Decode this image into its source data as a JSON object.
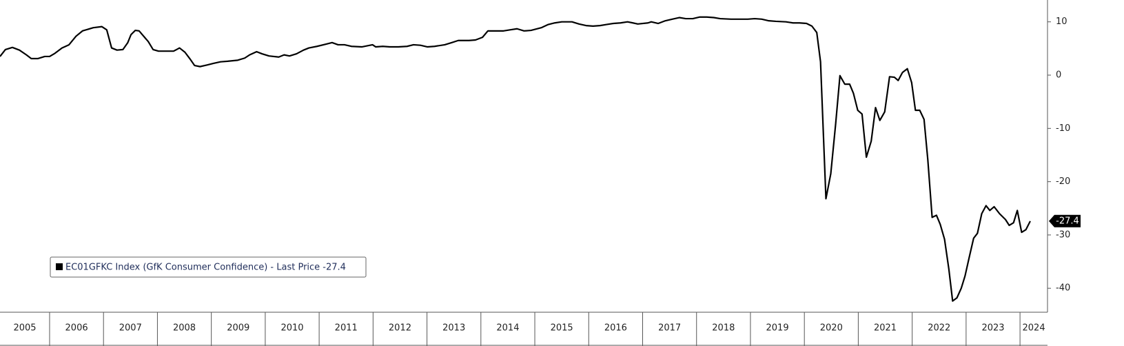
{
  "chart_data": {
    "type": "line",
    "xlim": [
      2005.08,
      2024.51
    ],
    "xticks": [
      2005,
      2006,
      2007,
      2008,
      2009,
      2010,
      2011,
      2012,
      2013,
      2014,
      2015,
      2016,
      2017,
      2018,
      2019,
      2020,
      2021,
      2022,
      2023,
      2024
    ],
    "ylim": [
      -44.5,
      14.1
    ],
    "yticks": [
      10,
      0,
      -10,
      -20,
      -30,
      -40
    ],
    "last_price": -27.4,
    "series": [
      {
        "name": "EC01GFKC Index (GfK Consumer Confidence) - Last Price -27.4",
        "color": "#000000",
        "x": [
          2005.08,
          2005.18,
          2005.31,
          2005.44,
          2005.57,
          2005.66,
          2005.78,
          2005.91,
          2006.0,
          2006.1,
          2006.23,
          2006.36,
          2006.49,
          2006.61,
          2006.81,
          2006.97,
          2007.06,
          2007.15,
          2007.25,
          2007.36,
          2007.45,
          2007.51,
          2007.59,
          2007.66,
          2007.77,
          2007.83,
          2007.92,
          2008.02,
          2008.15,
          2008.3,
          2008.41,
          2008.51,
          2008.6,
          2008.69,
          2008.79,
          2008.92,
          2009.04,
          2009.17,
          2009.3,
          2009.49,
          2009.62,
          2009.71,
          2009.84,
          2009.94,
          2010.07,
          2010.25,
          2010.35,
          2010.45,
          2010.58,
          2010.71,
          2010.81,
          2010.96,
          2011.12,
          2011.24,
          2011.35,
          2011.47,
          2011.6,
          2011.79,
          2011.99,
          2012.05,
          2012.18,
          2012.31,
          2012.47,
          2012.63,
          2012.75,
          2012.88,
          2013.01,
          2013.14,
          2013.33,
          2013.46,
          2013.58,
          2013.78,
          2013.9,
          2014.03,
          2014.13,
          2014.29,
          2014.42,
          2014.54,
          2014.67,
          2014.8,
          2014.93,
          2015.12,
          2015.25,
          2015.37,
          2015.5,
          2015.69,
          2015.82,
          2015.95,
          2016.08,
          2016.21,
          2016.33,
          2016.46,
          2016.59,
          2016.72,
          2016.82,
          2016.91,
          2017.1,
          2017.16,
          2017.29,
          2017.42,
          2017.55,
          2017.68,
          2017.8,
          2017.93,
          2018.06,
          2018.19,
          2018.32,
          2018.44,
          2018.64,
          2018.83,
          2018.95,
          2019.08,
          2019.21,
          2019.34,
          2019.47,
          2019.66,
          2019.79,
          2019.91,
          2020.04,
          2020.14,
          2020.23,
          2020.3,
          2020.4,
          2020.49,
          2020.58,
          2020.66,
          2020.75,
          2020.84,
          2020.91,
          2020.99,
          2021.07,
          2021.15,
          2021.24,
          2021.32,
          2021.4,
          2021.49,
          2021.58,
          2021.67,
          2021.74,
          2021.82,
          2021.91,
          2021.99,
          2022.06,
          2022.14,
          2022.22,
          2022.29,
          2022.37,
          2022.45,
          2022.52,
          2022.6,
          2022.68,
          2022.75,
          2022.83,
          2022.91,
          2022.98,
          2023.06,
          2023.14,
          2023.21,
          2023.29,
          2023.37,
          2023.44,
          2023.52,
          2023.62,
          2023.73,
          2023.8,
          2023.88,
          2023.95,
          2024.03,
          2024.11,
          2024.19
        ],
        "values": [
          3.5,
          4.8,
          5.2,
          4.7,
          3.8,
          3.1,
          3.1,
          3.5,
          3.5,
          4.1,
          5.1,
          5.7,
          7.3,
          8.3,
          8.9,
          9.1,
          8.5,
          5.1,
          4.7,
          4.8,
          6.1,
          7.6,
          8.4,
          8.3,
          7.0,
          6.3,
          4.8,
          4.5,
          4.5,
          4.5,
          5.1,
          4.3,
          3.1,
          1.8,
          1.6,
          1.9,
          2.2,
          2.5,
          2.6,
          2.8,
          3.2,
          3.8,
          4.4,
          4.0,
          3.6,
          3.4,
          3.8,
          3.6,
          4.0,
          4.7,
          5.1,
          5.4,
          5.8,
          6.1,
          5.7,
          5.7,
          5.4,
          5.3,
          5.7,
          5.3,
          5.4,
          5.3,
          5.3,
          5.4,
          5.7,
          5.6,
          5.3,
          5.4,
          5.7,
          6.1,
          6.5,
          6.5,
          6.6,
          7.1,
          8.3,
          8.3,
          8.3,
          8.5,
          8.7,
          8.3,
          8.4,
          8.9,
          9.5,
          9.8,
          10.0,
          10.0,
          9.6,
          9.3,
          9.2,
          9.3,
          9.5,
          9.7,
          9.8,
          10.0,
          9.8,
          9.6,
          9.8,
          10.0,
          9.7,
          10.2,
          10.5,
          10.8,
          10.6,
          10.6,
          10.9,
          10.9,
          10.8,
          10.6,
          10.5,
          10.5,
          10.5,
          10.6,
          10.5,
          10.2,
          10.1,
          10.0,
          9.8,
          9.8,
          9.7,
          9.2,
          8.0,
          2.5,
          -23.2,
          -18.5,
          -9.2,
          -0.1,
          -1.7,
          -1.7,
          -3.4,
          -6.6,
          -7.3,
          -15.4,
          -12.4,
          -6.1,
          -8.5,
          -6.9,
          -0.3,
          -0.4,
          -1.0,
          0.5,
          1.2,
          -1.4,
          -6.6,
          -6.6,
          -8.3,
          -15.9,
          -26.7,
          -26.3,
          -28.0,
          -30.8,
          -36.4,
          -42.4,
          -41.8,
          -40.0,
          -37.7,
          -34.1,
          -30.6,
          -29.7,
          -26.0,
          -24.5,
          -25.4,
          -24.7,
          -26.0,
          -27.1,
          -28.2,
          -27.7,
          -25.4,
          -29.5,
          -29.0,
          -27.4
        ]
      }
    ]
  }
}
